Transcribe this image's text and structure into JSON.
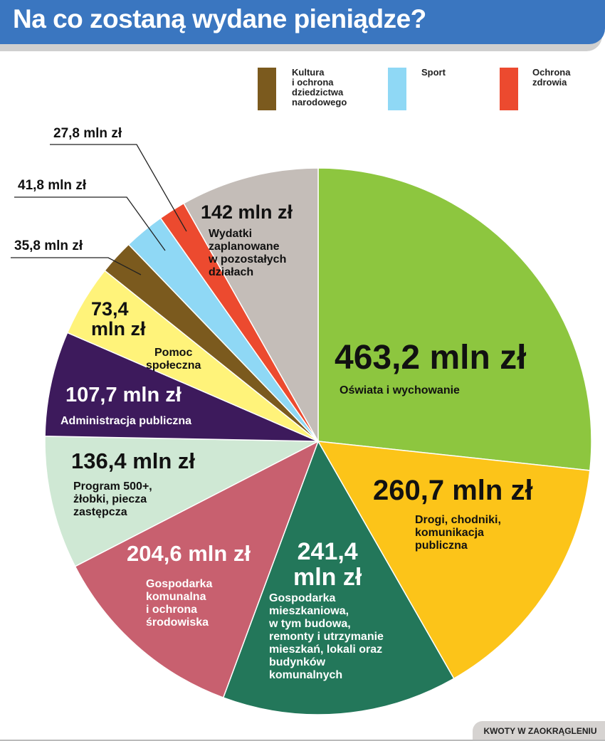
{
  "header": {
    "title": "Na co zostaną wydane pieniądze?"
  },
  "footer": {
    "note": "KWOTY W ZAOKRĄGLENIU"
  },
  "legend": [
    {
      "label": "Kultura\ni ochrona\ndziedzictwa\nnarodowego",
      "color": "#7b5a1e"
    },
    {
      "label": "Sport",
      "color": "#8fd8f5"
    },
    {
      "label": "Ochrona\nzdrowia",
      "color": "#ec4a2f"
    }
  ],
  "chart_data": {
    "type": "pie",
    "title": "Na co zostaną wydane pieniądze?",
    "unit": "mln zł",
    "start": "top, clockwise",
    "slices": [
      {
        "value": 463.2,
        "value_label": "463,2 mln zł",
        "label": "Oświata i wychowanie",
        "color": "#8dc63f"
      },
      {
        "value": 260.7,
        "value_label": "260,7 mln zł",
        "label": "Drogi, chodniki,\nkomunikacja\npubliczna",
        "color": "#fcc419"
      },
      {
        "value": 241.4,
        "value_label": "241,4\nmln zł",
        "label": "Gospodarka\nmieszkaniowa,\nw tym budowa,\nremonty i utrzymanie\nmieszkań, lokali oraz\nbudynków\nkomunalnych",
        "color": "#23775a"
      },
      {
        "value": 204.6,
        "value_label": "204,6 mln zł",
        "label": "Gospodarka\nkomunalna\ni ochrona\nśrodowiska",
        "color": "#c8606f"
      },
      {
        "value": 136.4,
        "value_label": "136,4 mln zł",
        "label": "Program 500+,\nżłobki, piecza\nzastępcza",
        "color": "#cfe8d4"
      },
      {
        "value": 107.7,
        "value_label": "107,7 mln zł",
        "label": "Administracja publiczna",
        "color": "#3d1a5c"
      },
      {
        "value": 73.4,
        "value_label": "73,4\nmln zł",
        "label": "Pomoc\nspołeczna",
        "color": "#fff37a"
      },
      {
        "value": 35.8,
        "value_label": "35,8 mln zł",
        "label": "Kultura i ochrona dziedzictwa narodowego",
        "color": "#7b5a1e"
      },
      {
        "value": 41.8,
        "value_label": "41,8 mln zł",
        "label": "Sport",
        "color": "#8fd8f5"
      },
      {
        "value": 27.8,
        "value_label": "27,8 mln zł",
        "label": "Ochrona zdrowia",
        "color": "#ec4a2f"
      },
      {
        "value": 142,
        "value_label": "142 mln zł",
        "label": "Wydatki\nzaplanowane\nw pozostałych\ndziałach",
        "color": "#c4bdb8"
      }
    ]
  }
}
